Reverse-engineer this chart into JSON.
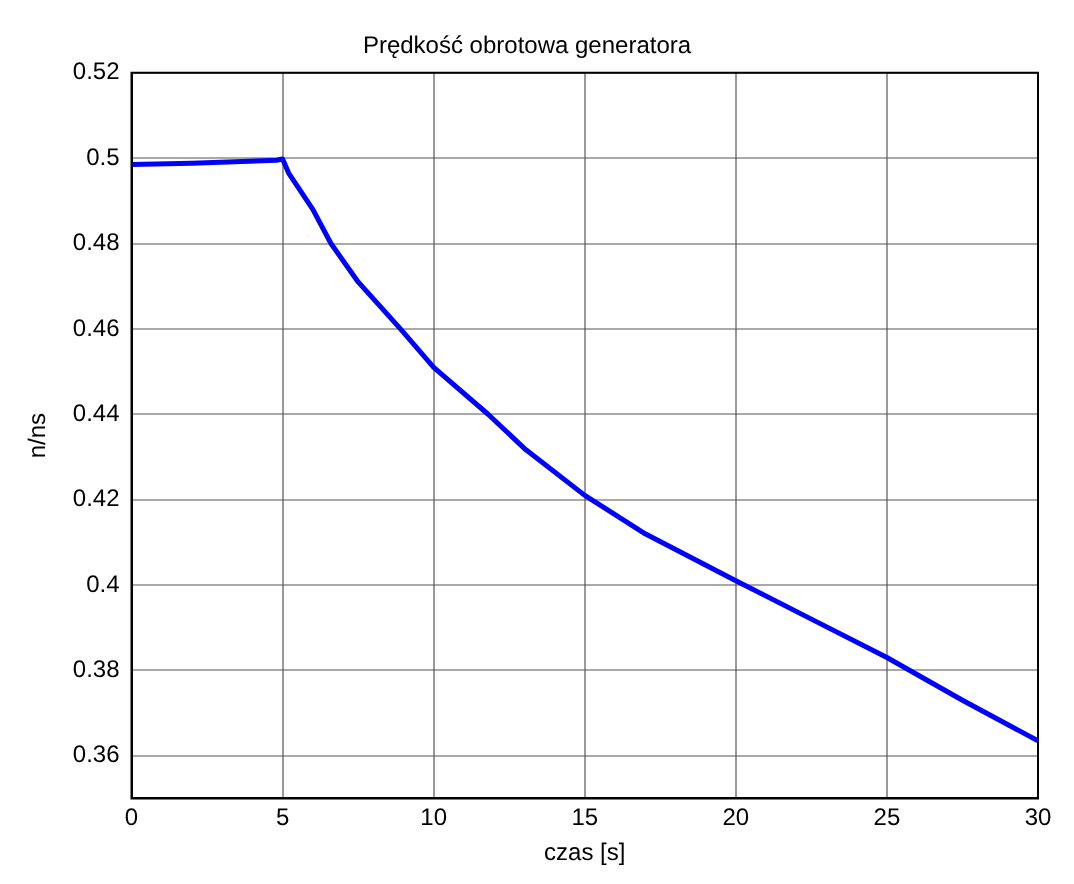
{
  "chart_data": {
    "type": "line",
    "title": "Prędkość obrotowa generatora",
    "xlabel": "czas [s]",
    "ylabel": "n/ns",
    "xlim": [
      0,
      30
    ],
    "xticks": [
      0,
      5,
      10,
      15,
      20,
      25,
      30
    ],
    "ylim": [
      0.35,
      0.52
    ],
    "yticks": [
      0.36,
      0.38,
      0.4,
      0.42,
      0.44,
      0.46,
      0.48,
      0.5,
      0.52
    ],
    "grid": true,
    "legend": false,
    "marker": "none",
    "line_style": "solid",
    "series": [
      {
        "color": "#0000ff",
        "x": [
          0,
          2,
          4.8,
          5,
          5.2,
          6,
          6.6,
          7.5,
          8.9,
          10,
          11.8,
          13,
          15,
          17,
          20,
          22.5,
          25,
          27.5,
          30
        ],
        "values": [
          0.4985,
          0.4988,
          0.4995,
          0.4998,
          0.4965,
          0.488,
          0.48,
          0.471,
          0.46,
          0.451,
          0.44,
          0.432,
          0.421,
          0.412,
          0.401,
          0.392,
          0.383,
          0.373,
          0.3635
        ]
      }
    ]
  }
}
